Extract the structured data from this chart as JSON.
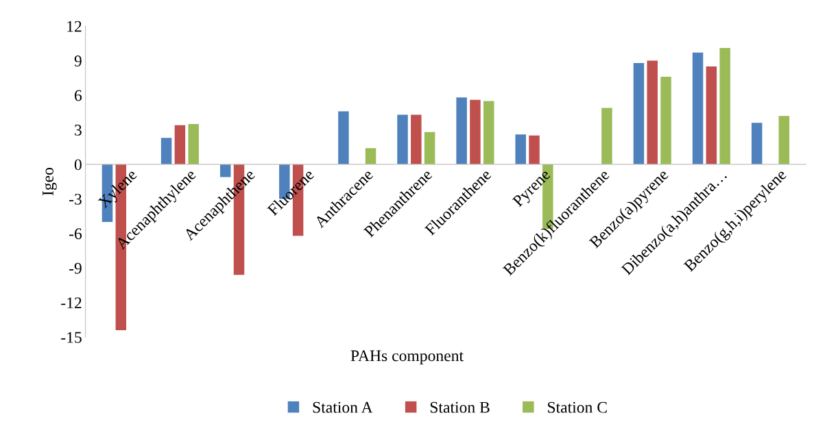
{
  "chart_data": {
    "type": "bar",
    "xlabel": "PAHs component",
    "ylabel": "Igeo",
    "categories": [
      "Xylene",
      "Acenaphthylene",
      "Acenaphthene",
      "Fluorene",
      "Anthracene",
      "Phenanthrene",
      "Fluoranthene",
      "Pyrene",
      "Benzo(k)fluoranthene",
      "Benzo(a)pyrene",
      "Dibenzo(a,h)anthra…",
      "Benzo(g,h,i)perylene"
    ],
    "series": [
      {
        "name": "Station A",
        "color": "#4f81bd",
        "values": [
          -5.0,
          2.3,
          -1.1,
          -3.0,
          4.6,
          4.3,
          5.8,
          2.6,
          null,
          8.8,
          9.7,
          3.6
        ]
      },
      {
        "name": "Station B",
        "color": "#c0504d",
        "values": [
          -14.4,
          3.4,
          -9.6,
          -6.2,
          null,
          4.3,
          5.6,
          2.5,
          null,
          9.0,
          8.5,
          null
        ]
      },
      {
        "name": "Station C",
        "color": "#9bbb59",
        "values": [
          null,
          3.5,
          null,
          null,
          1.4,
          2.8,
          5.5,
          -5.6,
          4.9,
          7.6,
          10.1,
          4.2
        ]
      }
    ],
    "ylim": [
      -15,
      12
    ],
    "yticks": [
      -15,
      -12,
      -9,
      -6,
      -3,
      0,
      3,
      6,
      9,
      12
    ],
    "grid": false,
    "legend": "bottom"
  }
}
